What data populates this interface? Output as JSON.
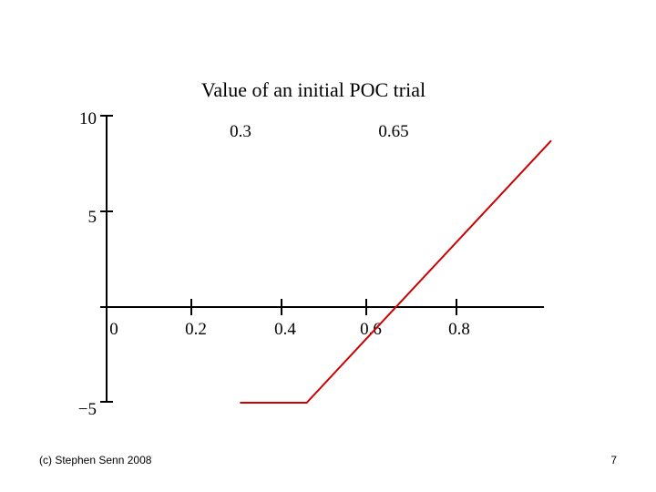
{
  "chart_data": {
    "type": "line",
    "title": "Value of an initial POC trial",
    "annotations": [
      "0.3",
      "0.65"
    ],
    "x_ticks": [
      "0",
      "0.2",
      "0.4",
      "0.6",
      "0.8"
    ],
    "y_ticks": [
      "10",
      "5",
      "−5"
    ],
    "xlim": [
      0,
      1
    ],
    "ylim": [
      -5,
      10
    ],
    "series": [
      {
        "color": "#cc0000",
        "x": [
          0.3,
          0.45,
          1.0
        ],
        "y": [
          -5,
          -5,
          8.7
        ]
      }
    ],
    "grid": false
  },
  "footer": {
    "left": "(c) Stephen Senn 2008",
    "right": "7"
  }
}
